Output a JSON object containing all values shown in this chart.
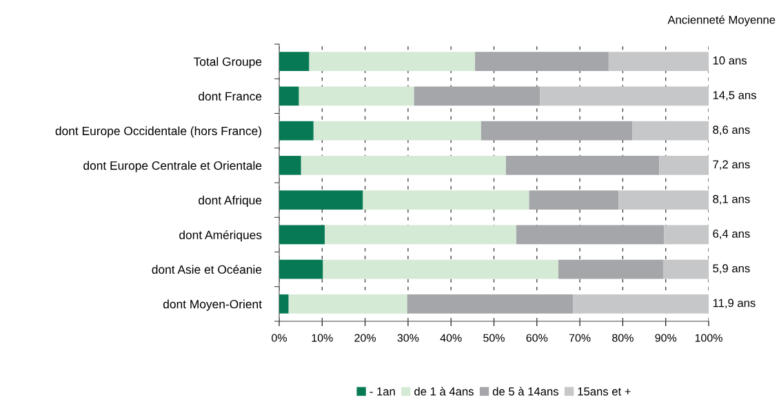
{
  "chart_data": {
    "type": "bar",
    "orientation": "horizontal",
    "stacked": true,
    "categories": [
      "Total Groupe",
      "dont France",
      "dont Europe Occidentale (hors France)",
      "dont Europe Centrale et Orientale",
      "dont Afrique",
      "dont Amériques",
      "dont Asie et Océanie",
      "dont Moyen-Orient"
    ],
    "series": [
      {
        "name": "- 1an",
        "color": "#077a55",
        "values": [
          7.0,
          4.6,
          8.0,
          5.1,
          19.5,
          10.6,
          10.2,
          2.2
        ]
      },
      {
        "name": "de 1 à 4ans",
        "color": "#d5ead5",
        "values": [
          38.6,
          26.8,
          39.0,
          47.7,
          38.7,
          44.6,
          54.8,
          27.6
        ]
      },
      {
        "name": "de 5 à 14ans",
        "color": "#a5a6aa",
        "values": [
          31.1,
          29.3,
          35.2,
          35.7,
          20.8,
          34.4,
          24.4,
          38.6
        ]
      },
      {
        "name": "15ans et +",
        "color": "#c6c7c9",
        "values": [
          23.3,
          39.3,
          17.8,
          11.5,
          21.0,
          10.4,
          10.6,
          31.6
        ]
      }
    ],
    "xlim": [
      0,
      100
    ],
    "xticks": [
      {
        "value": 0,
        "label": "0%"
      },
      {
        "value": 10,
        "label": "10%"
      },
      {
        "value": 20,
        "label": "20%"
      },
      {
        "value": 30,
        "label": "30%"
      },
      {
        "value": 40,
        "label": "40%"
      },
      {
        "value": 50,
        "label": "50%"
      },
      {
        "value": 60,
        "label": "60%"
      },
      {
        "value": 70,
        "label": "70%"
      },
      {
        "value": 80,
        "label": "80%"
      },
      {
        "value": 90,
        "label": "90%"
      },
      {
        "value": 100,
        "label": "100%"
      }
    ],
    "grid": "x",
    "line_style": "dashed",
    "legend": "bottom",
    "annotations": [
      "Ancienneté Moyenne",
      "10 ans",
      "14,5 ans",
      "8,6 ans",
      "7,2 ans",
      "8,1 ans",
      "6,4 ans",
      "5,9 ans",
      "11,9 ans"
    ]
  }
}
